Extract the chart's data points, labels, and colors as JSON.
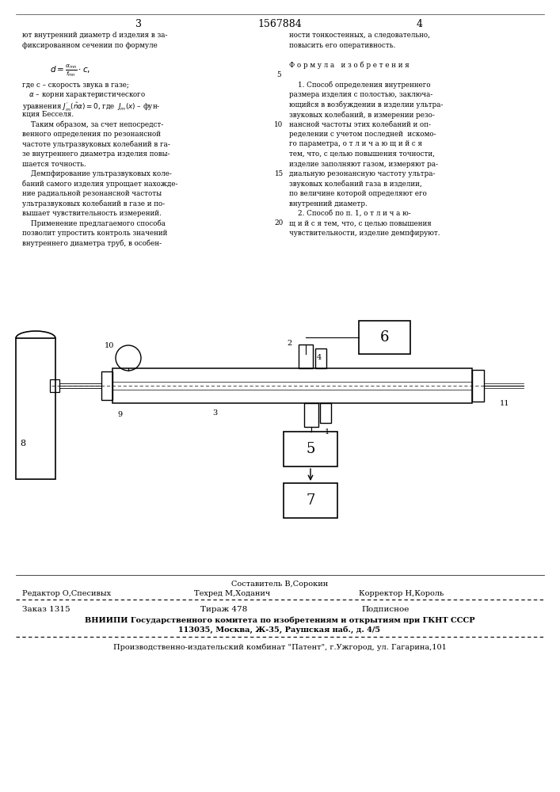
{
  "bg_color": "#ffffff",
  "title_center": "1567884",
  "page_left": "3",
  "page_right": "4",
  "footer_sestavitel": "Составитель В,Сорокин",
  "footer_redaktor": "Редактор О,Спесивых",
  "footer_tehred": "Техред М,Ходанич",
  "footer_korrektor": "Корректор Н,Король",
  "footer_zakaz": "Заказ 1315",
  "footer_tirazh": "Тираж 478",
  "footer_podpisnoe": "Подписное",
  "footer_vniipи": "ВНИИПИ Государственного комитета по изобретениям и открытиям при ГКНТ СССР",
  "footer_address": "113035, Москва, Ж-35, Раушская наб., д. 4/5",
  "footer_kombinat": "Производственно-издательский комбинат \"Патент\", г.Ужгород, ул. Гагарина,101"
}
